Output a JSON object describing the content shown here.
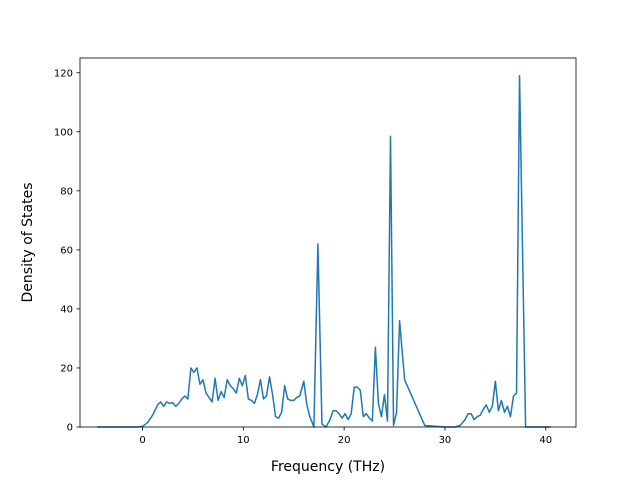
{
  "chart_data": {
    "type": "line",
    "title": "",
    "xlabel": "Frequency (THz)",
    "ylabel": "Density of States",
    "xlim": [
      -6.2,
      43.0
    ],
    "ylim": [
      0,
      125
    ],
    "xticks": [
      0,
      10,
      20,
      30,
      40
    ],
    "yticks": [
      0,
      20,
      40,
      60,
      80,
      100,
      120
    ],
    "xtick_labels": [
      "0",
      "10",
      "20",
      "30",
      "40"
    ],
    "ytick_labels": [
      "0",
      "20",
      "40",
      "60",
      "80",
      "100",
      "120"
    ],
    "grid": false,
    "legend": "none",
    "series": [
      {
        "color": "#1f77b4",
        "x": [
          -4.5,
          -0.5,
          0,
          0.5,
          1.0,
          1.5,
          1.8,
          2.1,
          2.4,
          2.7,
          3.0,
          3.3,
          3.6,
          3.9,
          4.2,
          4.5,
          4.8,
          5.1,
          5.4,
          5.7,
          6.0,
          6.3,
          6.6,
          6.9,
          7.2,
          7.5,
          7.8,
          8.1,
          8.4,
          8.7,
          9.0,
          9.3,
          9.6,
          9.9,
          10.2,
          10.5,
          10.8,
          11.1,
          11.4,
          11.7,
          12.0,
          12.3,
          12.6,
          12.9,
          13.2,
          13.5,
          13.8,
          14.1,
          14.4,
          14.7,
          15.0,
          15.3,
          15.6,
          16.0,
          16.3,
          16.6,
          17.0,
          17.4,
          17.8,
          18.2,
          18.6,
          18.9,
          19.2,
          19.5,
          19.8,
          20.1,
          20.4,
          20.7,
          21.0,
          21.3,
          21.6,
          21.9,
          22.2,
          22.5,
          22.8,
          23.1,
          23.4,
          23.7,
          24.0,
          24.3,
          24.6,
          24.9,
          25.2,
          25.5,
          26.0,
          28.0,
          30.0,
          31.0,
          31.5,
          32.0,
          32.3,
          32.6,
          32.9,
          33.2,
          33.5,
          33.8,
          34.1,
          34.4,
          34.7,
          35.0,
          35.3,
          35.6,
          35.9,
          36.2,
          36.5,
          36.8,
          37.1,
          37.4,
          38.0,
          40.5
        ],
        "y": [
          0,
          0,
          0.2,
          1.5,
          4,
          7.5,
          8.5,
          7,
          8.5,
          8,
          8.2,
          7,
          8,
          9.5,
          10.5,
          9.5,
          20,
          18.5,
          20,
          14.5,
          16,
          11.5,
          10,
          8.5,
          16.5,
          9,
          12,
          10,
          16,
          14,
          13,
          11.5,
          16.5,
          14,
          17.5,
          9.5,
          9,
          8,
          11,
          16,
          9.5,
          10.5,
          17,
          11,
          3.5,
          3,
          5,
          14,
          9.5,
          9,
          9,
          10,
          10.5,
          15.5,
          7.5,
          3.5,
          0,
          62,
          1,
          0,
          2.5,
          5.5,
          5.5,
          4.5,
          3,
          4.5,
          2.5,
          4.5,
          13.5,
          13.5,
          12.5,
          3.5,
          4.5,
          3,
          2,
          27,
          8,
          3.5,
          11,
          2,
          98.5,
          0.5,
          5,
          36,
          16,
          0.5,
          0,
          0,
          0.5,
          2.5,
          4.5,
          4.5,
          2.5,
          3.5,
          4,
          6,
          7.5,
          5,
          7,
          15.5,
          5.5,
          9,
          5,
          7,
          3.5,
          10.5,
          11.5,
          119,
          0,
          0
        ]
      }
    ]
  }
}
